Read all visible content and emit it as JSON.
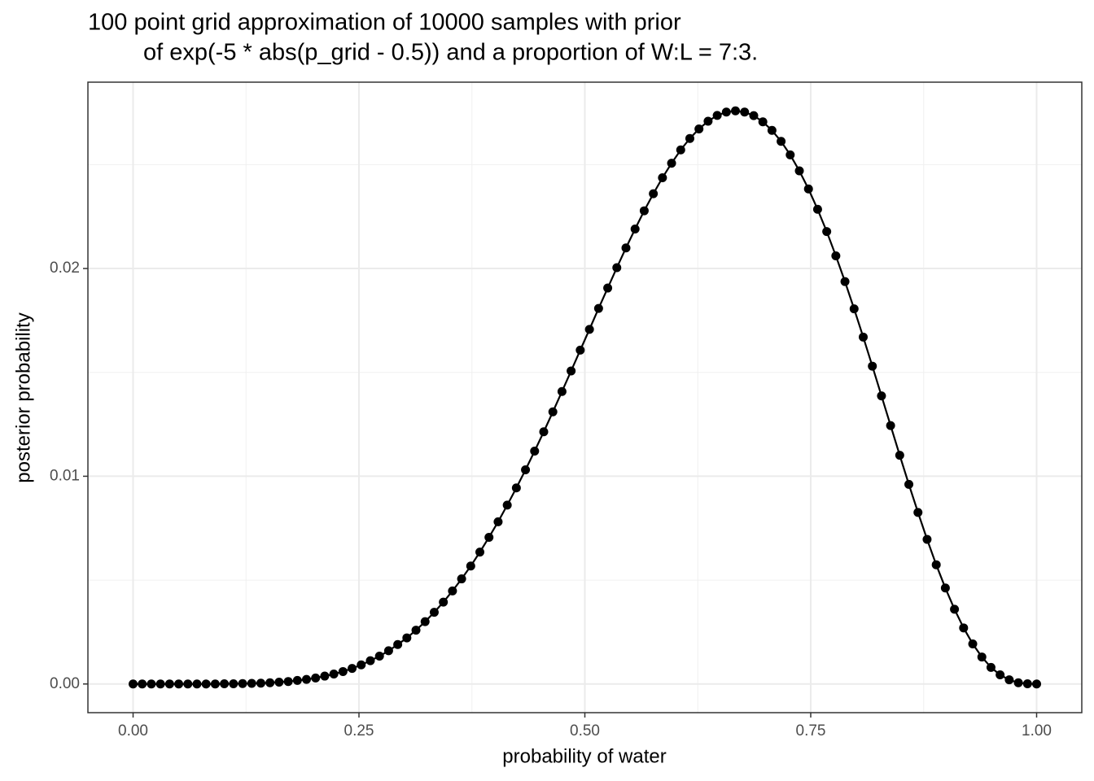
{
  "chart_data": {
    "type": "line",
    "title": [
      "100 point grid approximation of 10000 samples with prior",
      "of exp(-5 * abs(p_grid - 0.5)) and a proportion of W:L = 7:3."
    ],
    "x_label": "probability of water",
    "y_label": "posterior probability",
    "x": [
      0,
      0.0101,
      0.0202,
      0.0303,
      0.0404,
      0.0505,
      0.0606,
      0.0707,
      0.0808,
      0.0909,
      0.101,
      0.1111,
      0.1212,
      0.1313,
      0.1414,
      0.1515,
      0.1616,
      0.1717,
      0.1818,
      0.1919,
      0.202,
      0.2121,
      0.2222,
      0.2323,
      0.2424,
      0.2525,
      0.2626,
      0.2727,
      0.2828,
      0.2929,
      0.303,
      0.3131,
      0.3232,
      0.3333,
      0.3434,
      0.3535,
      0.3636,
      0.3737,
      0.3838,
      0.3939,
      0.404,
      0.4141,
      0.4242,
      0.4343,
      0.4444,
      0.4545,
      0.4646,
      0.4747,
      0.4848,
      0.4949,
      0.5051,
      0.5152,
      0.5253,
      0.5354,
      0.5455,
      0.5556,
      0.5657,
      0.5758,
      0.5859,
      0.596,
      0.6061,
      0.6162,
      0.6263,
      0.6364,
      0.6465,
      0.6566,
      0.6667,
      0.6768,
      0.6869,
      0.697,
      0.7071,
      0.7172,
      0.7273,
      0.7374,
      0.7475,
      0.7576,
      0.7677,
      0.7778,
      0.7879,
      0.798,
      0.8081,
      0.8182,
      0.8283,
      0.8384,
      0.8485,
      0.8586,
      0.8687,
      0.8788,
      0.8889,
      0.899,
      0.9091,
      0.9192,
      0.9293,
      0.9394,
      0.9495,
      0.9596,
      0.9697,
      0.9798,
      0.9899,
      1
    ],
    "series": [
      {
        "color": "#000000",
        "values": [
          0,
          0,
          0,
          0,
          0,
          0,
          0,
          0,
          0,
          0,
          1e-05,
          1e-05,
          2e-05,
          3e-05,
          4e-05,
          6e-05,
          9e-05,
          0.00012,
          0.00017,
          0.00022,
          0.00029,
          0.00038,
          0.00048,
          0.0006,
          0.00075,
          0.00092,
          0.00112,
          0.00134,
          0.0016,
          0.0019,
          0.00222,
          0.00259,
          0.003,
          0.00345,
          0.00394,
          0.00448,
          0.00506,
          0.00568,
          0.00635,
          0.00706,
          0.00781,
          0.00861,
          0.00944,
          0.01031,
          0.01121,
          0.01214,
          0.0131,
          0.01408,
          0.01507,
          0.01607,
          0.01707,
          0.01808,
          0.01906,
          0.02004,
          0.02099,
          0.0219,
          0.02278,
          0.0236,
          0.02437,
          0.02507,
          0.02571,
          0.02626,
          0.02672,
          0.02709,
          0.02737,
          0.02753,
          0.02759,
          0.02753,
          0.02736,
          0.02706,
          0.02665,
          0.02612,
          0.02547,
          0.0247,
          0.02383,
          0.02285,
          0.02178,
          0.02061,
          0.01937,
          0.01806,
          0.0167,
          0.0153,
          0.01387,
          0.01244,
          0.01101,
          0.00961,
          0.00826,
          0.00696,
          0.00574,
          0.00462,
          0.0036,
          0.0027,
          0.00193,
          0.0013,
          0.0008,
          0.00044,
          0.0002,
          6e-05,
          1e-05,
          0
        ]
      }
    ],
    "xlim": [
      -0.05,
      1.05
    ],
    "ylim": [
      -0.00138,
      0.02897
    ],
    "xticks": [
      {
        "value": 0,
        "label": "0.00"
      },
      {
        "value": 0.25,
        "label": "0.25"
      },
      {
        "value": 0.5,
        "label": "0.50"
      },
      {
        "value": 0.75,
        "label": "0.75"
      },
      {
        "value": 1,
        "label": "1.00"
      }
    ],
    "yticks": [
      {
        "value": 0,
        "label": "0.00"
      },
      {
        "value": 0.01,
        "label": "0.01"
      },
      {
        "value": 0.02,
        "label": "0.02"
      }
    ],
    "x_minor_ticks": [
      0.125,
      0.375,
      0.625,
      0.875
    ],
    "y_minor_ticks": [
      0.005,
      0.015,
      0.025
    ],
    "grid": true,
    "markers": true
  }
}
